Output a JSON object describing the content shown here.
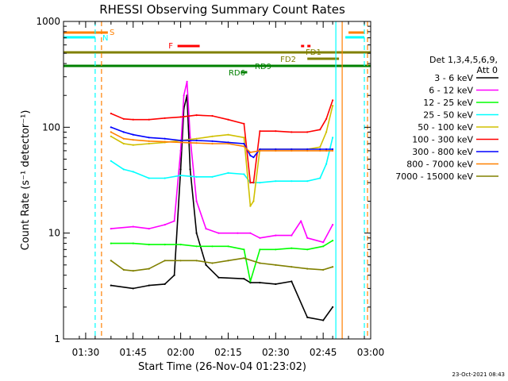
{
  "chart_data": {
    "type": "line",
    "title": "RHESSI Observing Summary Count Rates",
    "xlabel": "Start Time (26-Nov-04 01:23:02)",
    "ylabel": "Count Rate (s⁻¹ detector⁻¹)",
    "y_scale": "log",
    "ylim": [
      1,
      1000
    ],
    "xlim": [
      "01:23",
      "03:00"
    ],
    "x_ticks": [
      "01:30",
      "01:45",
      "02:00",
      "02:15",
      "02:30",
      "02:45",
      "03:00"
    ],
    "y_ticks": [
      "1",
      "10",
      "100",
      "1000"
    ],
    "grid": false,
    "footer": "23-Oct-2021 08:43",
    "legend": {
      "position": "right",
      "header": [
        "Det 1,3,4,5,6,9,",
        "Att 0"
      ],
      "entries": [
        {
          "label": "3 - 6 keV",
          "color": "#000000"
        },
        {
          "label": "6 - 12 keV",
          "color": "#ff00ff"
        },
        {
          "label": "12 - 25 keV",
          "color": "#00ff00"
        },
        {
          "label": "25 - 50 keV",
          "color": "#00ffff"
        },
        {
          "label": "50 - 100 keV",
          "color": "#d0c000"
        },
        {
          "label": "100 - 300 keV",
          "color": "#ff0000"
        },
        {
          "label": "300 - 800 keV",
          "color": "#0000ff"
        },
        {
          "label": "800 - 7000 keV",
          "color": "#ff8000"
        },
        {
          "label": "7000 - 15000 keV",
          "color": "#808000"
        }
      ]
    },
    "flag_bars": [
      {
        "label": "S",
        "color": "#ff8000",
        "segments": [
          [
            "01:23",
            "01:37"
          ],
          [
            "02:53",
            "02:58"
          ]
        ]
      },
      {
        "label": "N",
        "color": "#00ffff",
        "segments": [
          [
            "01:23",
            "01:33"
          ],
          [
            "02:52",
            "02:58"
          ]
        ]
      },
      {
        "label": "F",
        "color": "#ff0000",
        "segments": [
          [
            "01:59",
            "02:06"
          ],
          [
            "02:38",
            "02:39"
          ],
          [
            "02:40",
            "02:41"
          ]
        ]
      },
      {
        "label": "FD1",
        "color": "#808000",
        "segments": [
          [
            "01:23",
            "03:00"
          ]
        ]
      },
      {
        "label": "FD2",
        "color": "#808000",
        "segments": [
          [
            "02:40",
            "02:50"
          ]
        ]
      },
      {
        "label": "RD6",
        "color": "#008000",
        "segments": [
          [
            "01:23",
            "03:00"
          ],
          [
            "02:19",
            "02:21"
          ]
        ]
      },
      {
        "label": "RD9",
        "color": "#008000",
        "segments": []
      }
    ],
    "vlines": [
      {
        "time": "01:33",
        "color": "#00ffff",
        "style": "dashed"
      },
      {
        "time": "01:35",
        "color": "#ff8000",
        "style": "dashed"
      },
      {
        "time": "02:49",
        "color": "#00ffff",
        "style": "solid"
      },
      {
        "time": "02:51",
        "color": "#ff8000",
        "style": "solid"
      },
      {
        "time": "02:58",
        "color": "#00ffff",
        "style": "dashed"
      },
      {
        "time": "02:59",
        "color": "#ff8000",
        "style": "dashed"
      }
    ],
    "series": [
      {
        "name": "3 - 6 keV",
        "color": "#000000",
        "x": [
          "01:38",
          "01:45",
          "01:50",
          "01:55",
          "01:58",
          "02:00",
          "02:01",
          "02:02",
          "02:03",
          "02:05",
          "02:08",
          "02:12",
          "02:20",
          "02:22",
          "02:25",
          "02:30",
          "02:35",
          "02:40",
          "02:45",
          "02:48"
        ],
        "y": [
          3.2,
          3.0,
          3.2,
          3.3,
          4,
          40,
          150,
          200,
          40,
          10,
          5,
          3.8,
          3.7,
          3.4,
          3.4,
          3.3,
          3.5,
          1.6,
          1.5,
          2
        ]
      },
      {
        "name": "6 - 12 keV",
        "color": "#ff00ff",
        "x": [
          "01:38",
          "01:45",
          "01:50",
          "01:55",
          "01:58",
          "02:00",
          "02:01",
          "02:02",
          "02:03",
          "02:05",
          "02:08",
          "02:12",
          "02:18",
          "02:22",
          "02:25",
          "02:30",
          "02:35",
          "02:38",
          "02:40",
          "02:45",
          "02:48"
        ],
        "y": [
          11,
          11.5,
          11,
          12,
          13,
          60,
          200,
          270,
          80,
          20,
          11,
          10,
          10,
          10,
          9,
          9.5,
          9.5,
          13,
          9,
          8.2,
          12
        ]
      },
      {
        "name": "12 - 25 keV",
        "color": "#00ff00",
        "x": [
          "01:38",
          "01:45",
          "01:50",
          "01:55",
          "02:00",
          "02:05",
          "02:10",
          "02:15",
          "02:20",
          "02:22",
          "02:25",
          "02:30",
          "02:35",
          "02:40",
          "02:45",
          "02:48"
        ],
        "y": [
          8,
          8,
          7.8,
          7.8,
          7.8,
          7.5,
          7.5,
          7.5,
          7.0,
          3.5,
          7.0,
          7.0,
          7.2,
          7.0,
          7.5,
          8.5
        ]
      },
      {
        "name": "25 - 50 keV",
        "color": "#00ffff",
        "x": [
          "01:38",
          "01:42",
          "01:45",
          "01:50",
          "01:55",
          "02:00",
          "02:05",
          "02:10",
          "02:15",
          "02:20",
          "02:22",
          "02:23",
          "02:25",
          "02:30",
          "02:35",
          "02:40",
          "02:44",
          "02:46",
          "02:48"
        ],
        "y": [
          48,
          40,
          38,
          33,
          33,
          35,
          34,
          34,
          37,
          36,
          30,
          30,
          30,
          31,
          31,
          31,
          33,
          45,
          80
        ]
      },
      {
        "name": "50 - 100 keV",
        "color": "#d0c000",
        "x": [
          "01:38",
          "01:42",
          "01:45",
          "01:50",
          "01:55",
          "02:00",
          "02:05",
          "02:10",
          "02:15",
          "02:20",
          "02:22",
          "02:23",
          "02:25",
          "02:30",
          "02:35",
          "02:40",
          "02:44",
          "02:46",
          "02:48"
        ],
        "y": [
          82,
          70,
          68,
          70,
          72,
          75,
          78,
          82,
          85,
          80,
          18,
          20,
          62,
          62,
          62,
          62,
          65,
          90,
          160
        ]
      },
      {
        "name": "100 - 300 keV",
        "color": "#ff0000",
        "x": [
          "01:38",
          "01:42",
          "01:45",
          "01:50",
          "01:55",
          "02:00",
          "02:05",
          "02:10",
          "02:15",
          "02:20",
          "02:22",
          "02:23",
          "02:25",
          "02:30",
          "02:35",
          "02:40",
          "02:44",
          "02:46",
          "02:48"
        ],
        "y": [
          135,
          120,
          118,
          118,
          122,
          125,
          130,
          128,
          118,
          108,
          30,
          30,
          92,
          92,
          90,
          90,
          95,
          120,
          180
        ]
      },
      {
        "name": "300 - 800 keV",
        "color": "#0000ff",
        "x": [
          "01:38",
          "01:42",
          "01:45",
          "01:50",
          "01:55",
          "02:00",
          "02:05",
          "02:10",
          "02:15",
          "02:20",
          "02:22",
          "02:23",
          "02:25",
          "02:30",
          "02:35",
          "02:40",
          "02:44",
          "02:46",
          "02:48"
        ],
        "y": [
          100,
          90,
          85,
          80,
          78,
          75,
          75,
          74,
          72,
          70,
          54,
          52,
          62,
          62,
          62,
          62,
          62,
          62,
          62
        ]
      },
      {
        "name": "800 - 7000 keV",
        "color": "#ff8000",
        "x": [
          "01:38",
          "01:42",
          "01:45",
          "01:50",
          "01:55",
          "02:00",
          "02:05",
          "02:10",
          "02:15",
          "02:20",
          "02:22",
          "02:25",
          "02:30",
          "02:35",
          "02:40",
          "02:44",
          "02:46",
          "02:48"
        ],
        "y": [
          90,
          78,
          76,
          74,
          73,
          72,
          71,
          70,
          70,
          66,
          58,
          60,
          60,
          60,
          60,
          60,
          60,
          60
        ]
      },
      {
        "name": "7000 - 15000 keV",
        "color": "#808000",
        "x": [
          "01:38",
          "01:42",
          "01:45",
          "01:50",
          "01:55",
          "02:00",
          "02:05",
          "02:10",
          "02:15",
          "02:20",
          "02:25",
          "02:30",
          "02:35",
          "02:40",
          "02:45",
          "02:48"
        ],
        "y": [
          5.5,
          4.5,
          4.4,
          4.6,
          5.5,
          5.5,
          5.5,
          5.2,
          5.5,
          5.8,
          5.2,
          5.0,
          4.8,
          4.6,
          4.5,
          4.8
        ]
      }
    ]
  }
}
